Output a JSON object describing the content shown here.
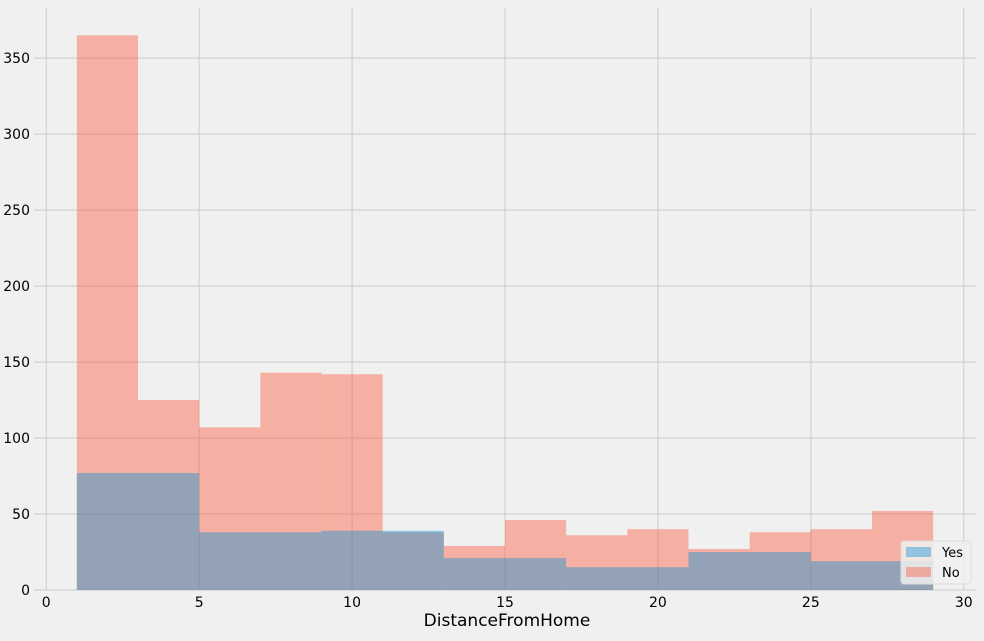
{
  "chart_data": {
    "type": "bar",
    "title": "",
    "xlabel": "DistanceFromHome",
    "ylabel": "",
    "xlim": [
      -0.4,
      30.4
    ],
    "ylim": [
      0,
      383
    ],
    "xticks": [
      0,
      5,
      10,
      15,
      20,
      25,
      30
    ],
    "xtick_labels": [
      "0",
      "5",
      "10",
      "15",
      "20",
      "25",
      "30"
    ],
    "yticks": [
      0,
      50,
      100,
      150,
      200,
      250,
      300,
      350
    ],
    "ytick_labels": [
      "0",
      "50",
      "100",
      "150",
      "200",
      "250",
      "300",
      "350"
    ],
    "grid": true,
    "legend_position": "bottom-right",
    "series": [
      {
        "name": "No",
        "color": "#fc4f30",
        "opacity": 0.4,
        "bins": [
          {
            "x0": 1,
            "x1": 3,
            "value": 365
          },
          {
            "x0": 3,
            "x1": 5,
            "value": 125
          },
          {
            "x0": 5,
            "x1": 7,
            "value": 107
          },
          {
            "x0": 7,
            "x1": 9,
            "value": 143
          },
          {
            "x0": 9,
            "x1": 11,
            "value": 142
          },
          {
            "x0": 11,
            "x1": 13,
            "value": 38
          },
          {
            "x0": 13,
            "x1": 15,
            "value": 29
          },
          {
            "x0": 15,
            "x1": 17,
            "value": 46
          },
          {
            "x0": 17,
            "x1": 19,
            "value": 36
          },
          {
            "x0": 19,
            "x1": 21,
            "value": 40
          },
          {
            "x0": 21,
            "x1": 23,
            "value": 27
          },
          {
            "x0": 23,
            "x1": 25,
            "value": 38
          },
          {
            "x0": 25,
            "x1": 27,
            "value": 40
          },
          {
            "x0": 27,
            "x1": 29,
            "value": 52
          }
        ]
      },
      {
        "name": "Yes",
        "color": "#008fd5",
        "opacity": 0.4,
        "bins": [
          {
            "x0": 1,
            "x1": 5,
            "value": 77
          },
          {
            "x0": 5,
            "x1": 9,
            "value": 38
          },
          {
            "x0": 9,
            "x1": 13,
            "value": 39
          },
          {
            "x0": 13,
            "x1": 17,
            "value": 21
          },
          {
            "x0": 17,
            "x1": 21,
            "value": 15
          },
          {
            "x0": 21,
            "x1": 25,
            "value": 25
          },
          {
            "x0": 25,
            "x1": 29,
            "value": 19
          }
        ]
      }
    ],
    "legend": [
      {
        "label": "Yes",
        "color": "#008fd5"
      },
      {
        "label": "No",
        "color": "#fc4f30"
      }
    ]
  }
}
